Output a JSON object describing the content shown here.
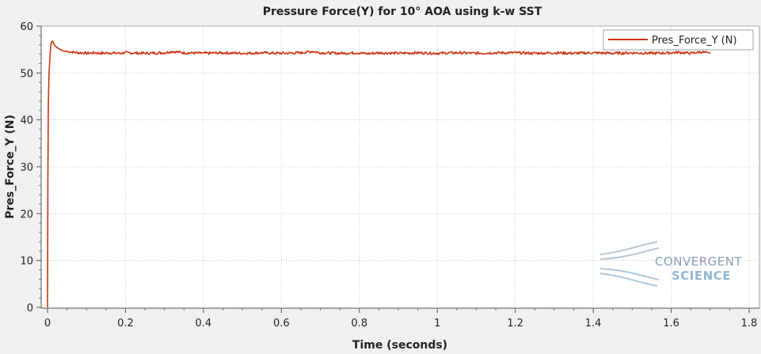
{
  "chart_data": {
    "type": "line",
    "title": "Pressure Force(Y) for 10° AOA using k-w SST",
    "xlabel": "Time (seconds)",
    "ylabel": "Pres_Force_Y (N)",
    "xlim": [
      0,
      1.8
    ],
    "ylim": [
      0,
      60
    ],
    "xticks": [
      "0",
      "0.2",
      "0.4",
      "0.6",
      "0.8",
      "1",
      "1.2",
      "1.4",
      "1.6",
      "1.8"
    ],
    "yticks": [
      "0",
      "10",
      "20",
      "30",
      "40",
      "50",
      "60"
    ],
    "grid": true,
    "legend_position": "top-right",
    "series": [
      {
        "name": "Pres_Force_Y (N)",
        "color": "#cc3311",
        "x": [
          0,
          0.001,
          0.002,
          0.003,
          0.004,
          0.006,
          0.008,
          0.01,
          0.013,
          0.016,
          0.02,
          0.025,
          0.03,
          0.035,
          0.04,
          0.05,
          0.06,
          0.07,
          0.08,
          0.09,
          0.1,
          0.12,
          0.14,
          0.16,
          0.18,
          0.2,
          0.25,
          0.3,
          0.32,
          0.35,
          0.4,
          0.45,
          0.5,
          0.55,
          0.6,
          0.65,
          0.68,
          0.7,
          0.75,
          0.8,
          0.82,
          0.85,
          0.9,
          0.95,
          1.0,
          1.05,
          1.1,
          1.15,
          1.2,
          1.25,
          1.3,
          1.35,
          1.4,
          1.45,
          1.5,
          1.55,
          1.6,
          1.62,
          1.65,
          1.68,
          1.7
        ],
        "y": [
          0,
          28,
          42,
          47,
          50,
          53,
          55.5,
          56.6,
          56.8,
          56.2,
          55.7,
          55.4,
          55.1,
          54.9,
          54.7,
          54.6,
          54.5,
          54.4,
          54.3,
          54.3,
          54.2,
          54.3,
          54.2,
          54.3,
          54.2,
          54.3,
          54.2,
          54.3,
          54.6,
          54.3,
          54.2,
          54.3,
          54.2,
          54.3,
          54.2,
          54.3,
          54.6,
          54.3,
          54.2,
          54.3,
          54.1,
          54.3,
          54.2,
          54.3,
          54.2,
          54.3,
          54.2,
          54.3,
          54.3,
          54.2,
          54.3,
          54.2,
          54.3,
          54.2,
          54.3,
          54.2,
          54.3,
          54.4,
          54.2,
          54.5,
          54.1
        ]
      }
    ]
  },
  "logo": {
    "line1": "CONVERGENT",
    "line2": "SCIENCE"
  }
}
